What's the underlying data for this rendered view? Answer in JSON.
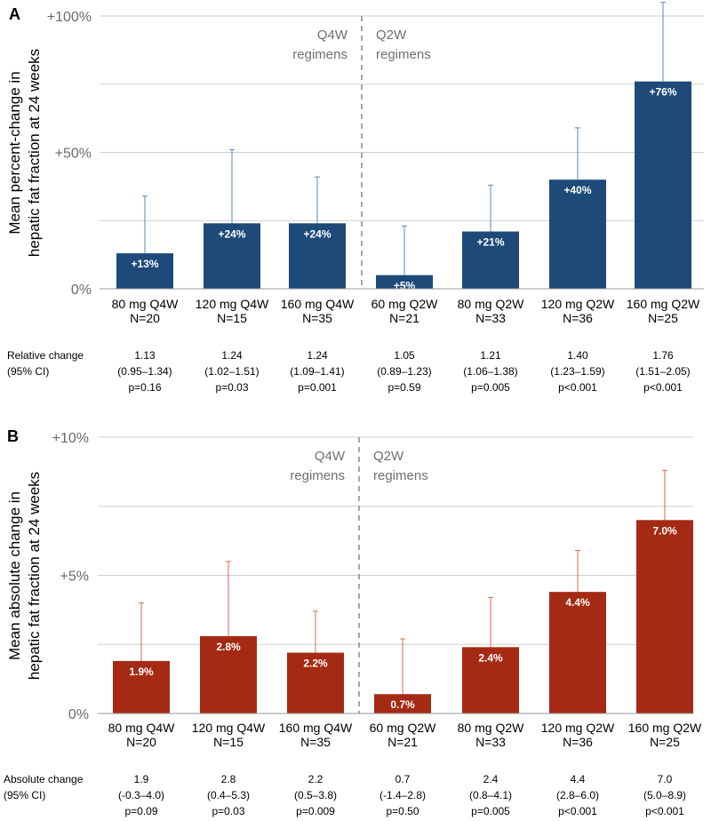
{
  "chart_data": [
    {
      "type": "bar",
      "panel_label": "A",
      "ylabel": [
        "Mean percent-change in",
        "hepatic fat fraction at 24 weeks"
      ],
      "ylim": [
        0,
        100
      ],
      "yticks": [
        0,
        50,
        100
      ],
      "ytick_labels": [
        "0%",
        "+50%",
        "+100%"
      ],
      "grid": true,
      "bar_color": "#1e4a7a",
      "error_color": "#5a8ab8",
      "groups": [
        {
          "label_line1": "Q4W",
          "label_line2": "regimens"
        },
        {
          "label_line1": "Q2W",
          "label_line2": "regimens"
        }
      ],
      "categories": [
        {
          "line1": "80 mg Q4W",
          "line2": "N=20"
        },
        {
          "line1": "120 mg Q4W",
          "line2": "N=15"
        },
        {
          "line1": "160 mg Q4W",
          "line2": "N=35"
        },
        {
          "line1": "60 mg Q2W",
          "line2": "N=21"
        },
        {
          "line1": "80 mg Q2W",
          "line2": "N=33"
        },
        {
          "line1": "120 mg Q2W",
          "line2": "N=36"
        },
        {
          "line1": "160 mg Q2W",
          "line2": "N=25"
        }
      ],
      "values": [
        13,
        24,
        24,
        5,
        21,
        40,
        76
      ],
      "error_upper": [
        34,
        51,
        41,
        23,
        38,
        59,
        105
      ],
      "value_labels": [
        "+13%",
        "+24%",
        "+24%",
        "+5%",
        "+21%",
        "+40%",
        "+76%"
      ],
      "stats_header": [
        "Relative change",
        "(95% CI)"
      ],
      "stats": [
        [
          "1.13",
          "(0.95–1.34)",
          "p=0.16"
        ],
        [
          "1.24",
          "(1.02–1.51)",
          "p=0.03"
        ],
        [
          "1.24",
          "(1.09–1.41)",
          "p=0.001"
        ],
        [
          "1.05",
          "(0.89–1.23)",
          "p=0.59"
        ],
        [
          "1.21",
          "(1.06–1.38)",
          "p=0.005"
        ],
        [
          "1.40",
          "(1.23–1.59)",
          "p<0.001"
        ],
        [
          "1.76",
          "(1.51–2.05)",
          "p<0.001"
        ]
      ]
    },
    {
      "type": "bar",
      "panel_label": "B",
      "ylabel": [
        "Mean absolute change in",
        "hepatic fat fraction at 24 weeks"
      ],
      "ylim": [
        0,
        10
      ],
      "yticks": [
        0,
        5,
        10
      ],
      "ytick_labels": [
        "0%",
        "+5%",
        "+10%"
      ],
      "grid": true,
      "bar_color": "#a52a14",
      "error_color": "#d46a55",
      "groups": [
        {
          "label_line1": "Q4W",
          "label_line2": "regimens"
        },
        {
          "label_line1": "Q2W",
          "label_line2": "regimens"
        }
      ],
      "categories": [
        {
          "line1": "80 mg Q4W",
          "line2": "N=20"
        },
        {
          "line1": "120 mg Q4W",
          "line2": "N=15"
        },
        {
          "line1": "160 mg Q4W",
          "line2": "N=35"
        },
        {
          "line1": "60 mg Q2W",
          "line2": "N=21"
        },
        {
          "line1": "80 mg Q2W",
          "line2": "N=33"
        },
        {
          "line1": "120 mg Q2W",
          "line2": "N=36"
        },
        {
          "line1": "160 mg Q2W",
          "line2": "N=25"
        }
      ],
      "values": [
        1.9,
        2.8,
        2.2,
        0.7,
        2.4,
        4.4,
        7.0
      ],
      "error_upper": [
        4.0,
        5.5,
        3.7,
        2.7,
        4.2,
        5.9,
        8.8
      ],
      "value_labels": [
        "1.9%",
        "2.8%",
        "2.2%",
        "0.7%",
        "2.4%",
        "4.4%",
        "7.0%"
      ],
      "stats_header": [
        "Absolute change",
        "(95% CI)"
      ],
      "stats": [
        [
          "1.9",
          "(-0.3–4.0)",
          "p=0.09"
        ],
        [
          "2.8",
          "(0.4–5.3)",
          "p=0.03"
        ],
        [
          "2.2",
          "(0.5–3.8)",
          "p=0.009"
        ],
        [
          "0.7",
          "(-1.4–2.8)",
          "p=0.50"
        ],
        [
          "2.4",
          "(0.8–4.1)",
          "p=0.005"
        ],
        [
          "4.4",
          "(2.8–6.0)",
          "p<0.001"
        ],
        [
          "7.0",
          "(5.0–8.9)",
          "p<0.001"
        ]
      ]
    }
  ]
}
